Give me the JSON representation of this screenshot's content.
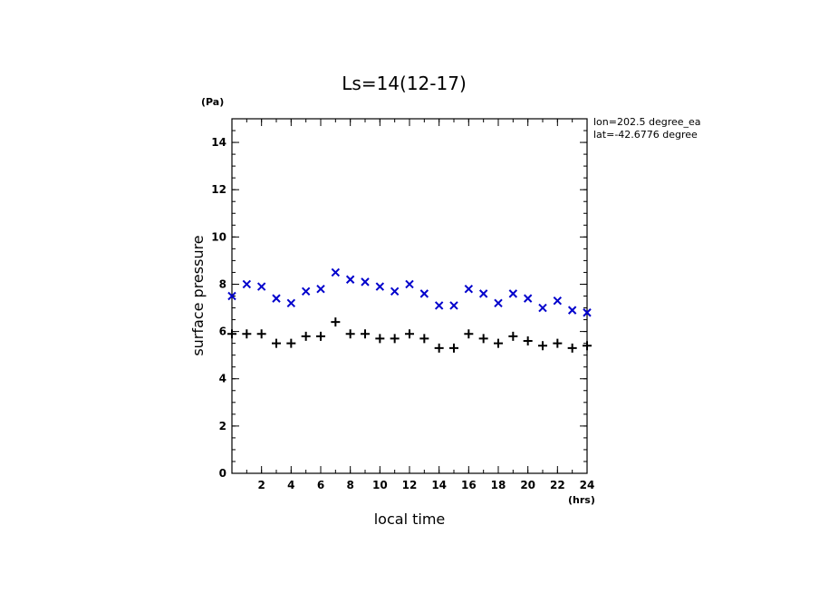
{
  "chart_data": {
    "type": "scatter",
    "title": "Ls=14(12-17)",
    "xlabel": "local time",
    "ylabel": "surface pressure",
    "x_unit": "(hrs)",
    "y_unit": "(Pa)",
    "xlim": [
      0,
      24
    ],
    "ylim": [
      0,
      15
    ],
    "x_ticks": [
      2,
      4,
      6,
      8,
      10,
      12,
      14,
      16,
      18,
      20,
      22,
      24
    ],
    "y_ticks": [
      0,
      2,
      4,
      6,
      8,
      10,
      12,
      14
    ],
    "grid": false,
    "annotations": [
      "lon=202.5 degree_ea",
      "lat=-42.6776 degree"
    ],
    "series": [
      {
        "marker": "x",
        "color": "#0000cc",
        "x": [
          0,
          1,
          2,
          3,
          4,
          5,
          6,
          7,
          8,
          9,
          10,
          11,
          12,
          13,
          14,
          15,
          16,
          17,
          18,
          19,
          20,
          21,
          22,
          23,
          24
        ],
        "y": [
          7.5,
          8.0,
          7.9,
          7.4,
          7.2,
          7.7,
          7.8,
          8.5,
          8.2,
          8.1,
          7.9,
          7.7,
          8.0,
          7.6,
          7.1,
          7.1,
          7.8,
          7.6,
          7.2,
          7.6,
          7.4,
          7.0,
          7.3,
          6.9,
          6.8
        ]
      },
      {
        "marker": "+",
        "color": "#000000",
        "x": [
          0,
          1,
          2,
          3,
          4,
          5,
          6,
          7,
          8,
          9,
          10,
          11,
          12,
          13,
          14,
          15,
          16,
          17,
          18,
          19,
          20,
          21,
          22,
          23,
          24
        ],
        "y": [
          5.9,
          5.9,
          5.9,
          5.5,
          5.5,
          5.8,
          5.8,
          6.4,
          5.9,
          5.9,
          5.7,
          5.7,
          5.9,
          5.7,
          5.3,
          5.3,
          5.9,
          5.7,
          5.5,
          5.8,
          5.6,
          5.4,
          5.5,
          5.3,
          5.4
        ]
      }
    ]
  }
}
